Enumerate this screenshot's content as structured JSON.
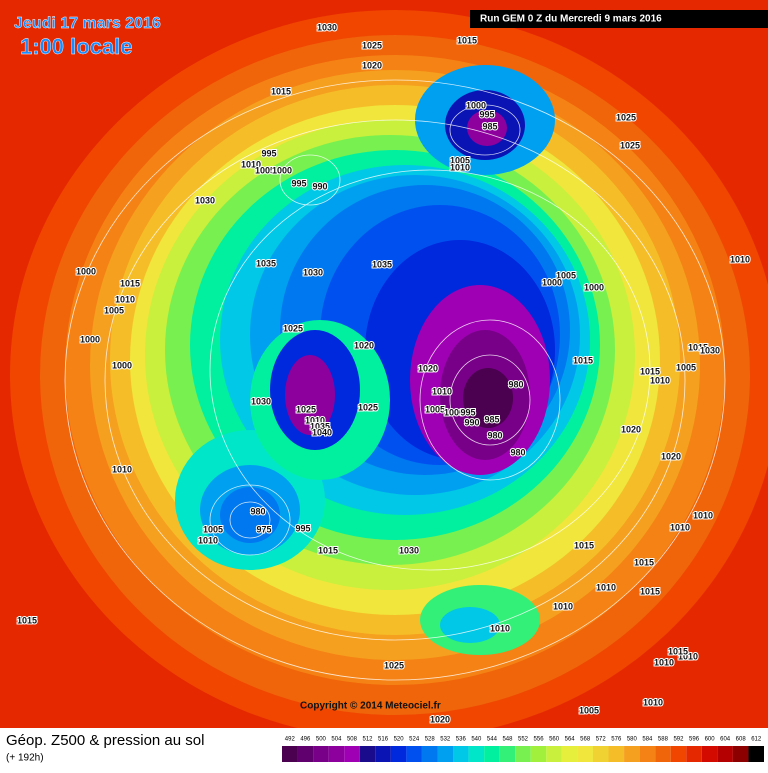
{
  "header": {
    "date": "Jeudi 17 mars 2016",
    "time": "1:00 locale",
    "run": "Run GEM 0 Z du Mercredi 9 mars 2016"
  },
  "footer": {
    "title": "Géop. Z500 & pression au sol",
    "lead": "(+ 192h)",
    "copyright": "Copyright © 2014 Meteociel.fr"
  },
  "legend": {
    "levels": [
      492,
      496,
      500,
      504,
      508,
      512,
      516,
      520,
      524,
      528,
      532,
      536,
      540,
      544,
      548,
      552,
      556,
      560,
      564,
      568,
      572,
      576,
      580,
      584,
      588,
      592,
      596,
      600,
      604,
      608,
      612
    ],
    "colors": [
      "#4b0050",
      "#5f006e",
      "#780088",
      "#8e009e",
      "#a000b4",
      "#1a0a8c",
      "#0a14b4",
      "#0028dc",
      "#0050f0",
      "#0078f0",
      "#00a0f0",
      "#00c8e6",
      "#00e6c8",
      "#00f0a0",
      "#32f078",
      "#78f050",
      "#a0f03c",
      "#c8f03c",
      "#e6f03c",
      "#f0e63c",
      "#f0d232",
      "#f5be28",
      "#f5a01e",
      "#f58214",
      "#f0640a",
      "#f04600",
      "#e62800",
      "#d20a00",
      "#b40000",
      "#8c0000",
      "#000000"
    ]
  },
  "isobar_labels": [
    "1030",
    "1025",
    "1015",
    "1020",
    "1015",
    "1000",
    "995",
    "985",
    "1005",
    "1010",
    "995",
    "1010",
    "1005",
    "1000",
    "995",
    "990",
    "1030",
    "1025",
    "1025",
    "1010",
    "1035",
    "1030",
    "1035",
    "1005",
    "1000",
    "1000",
    "1000",
    "1015",
    "1010",
    "1005",
    "1025",
    "1020",
    "1000",
    "1015",
    "1015",
    "1030",
    "1005",
    "1015",
    "1010",
    "1020",
    "1000",
    "1010",
    "980",
    "1030",
    "1025",
    "1025",
    "1005",
    "1000",
    "995",
    "985",
    "990",
    "1010",
    "1035",
    "1040",
    "980",
    "1020",
    "1020",
    "980",
    "1010",
    "980",
    "975",
    "995",
    "1005",
    "1010",
    "1015",
    "1030",
    "1015",
    "1015",
    "1010",
    "1015",
    "1010",
    "1010",
    "1010",
    "1015",
    "1010",
    "1010",
    "1010",
    "1025",
    "1020",
    "1005",
    "1010",
    "1015"
  ]
}
